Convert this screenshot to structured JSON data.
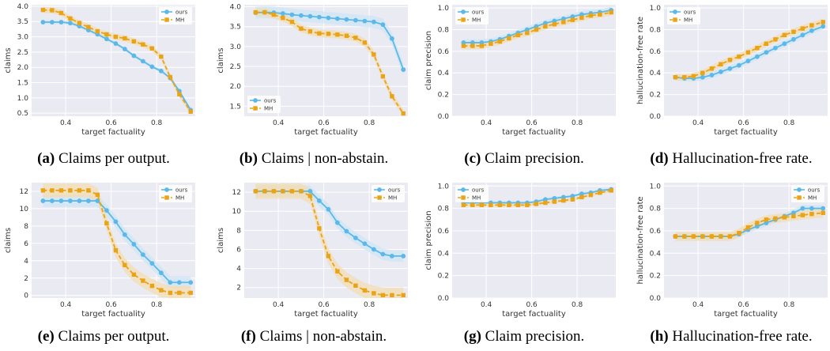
{
  "style": {
    "plot_bg": "#eaeaf2",
    "grid": "#ffffff",
    "ours_color": "#5bb8e8",
    "mh_color": "#e8a317",
    "ours_band": "#cde6f4",
    "mh_band": "#f3dcb0"
  },
  "chart_data": [
    {
      "type": "line",
      "panel": "a",
      "caption_tag": "(a)",
      "caption_text": "Claims per output.",
      "xlabel": "target factuality",
      "ylabel": "claims",
      "xlim": [
        0.25,
        0.97
      ],
      "ylim": [
        0.4,
        4.05
      ],
      "xticks": [
        0.4,
        0.6,
        0.8
      ],
      "yticks": [
        0.5,
        1.0,
        1.5,
        2.0,
        2.5,
        3.0,
        3.5,
        4.0
      ],
      "ytick_labels": [
        "0.5",
        "1.0",
        "1.5",
        "2.0",
        "2.5",
        "3.0",
        "3.5",
        "4.0"
      ],
      "xtick_labels": [
        "0.4",
        "0.6",
        "0.8"
      ],
      "grid": true,
      "legend": "top-right",
      "x": [
        0.3,
        0.34,
        0.38,
        0.42,
        0.46,
        0.5,
        0.54,
        0.58,
        0.62,
        0.66,
        0.7,
        0.74,
        0.78,
        0.82,
        0.86,
        0.9,
        0.95
      ],
      "series": [
        {
          "name": "ours",
          "values": [
            3.48,
            3.48,
            3.48,
            3.45,
            3.35,
            3.22,
            3.08,
            2.93,
            2.78,
            2.6,
            2.38,
            2.2,
            2.02,
            1.88,
            1.65,
            1.22,
            0.6
          ],
          "band": 0.06
        },
        {
          "name": "MH",
          "values": [
            3.88,
            3.87,
            3.78,
            3.6,
            3.45,
            3.32,
            3.18,
            3.08,
            3.0,
            2.95,
            2.85,
            2.75,
            2.62,
            2.35,
            1.68,
            1.12,
            0.55
          ],
          "band": 0.1
        }
      ]
    },
    {
      "type": "line",
      "panel": "b",
      "caption_tag": "(b)",
      "caption_text": "Claims | non-abstain.",
      "xlabel": "target factuality",
      "ylabel": "claims",
      "xlim": [
        0.25,
        0.97
      ],
      "ylim": [
        1.25,
        4.05
      ],
      "xticks": [
        0.4,
        0.6,
        0.8
      ],
      "yticks": [
        1.5,
        2.0,
        2.5,
        3.0,
        3.5,
        4.0
      ],
      "ytick_labels": [
        "1.5",
        "2.0",
        "2.5",
        "3.0",
        "3.5",
        "4.0"
      ],
      "xtick_labels": [
        "0.4",
        "0.6",
        "0.8"
      ],
      "grid": true,
      "legend": "bottom-left",
      "x": [
        0.3,
        0.34,
        0.38,
        0.42,
        0.46,
        0.5,
        0.54,
        0.58,
        0.62,
        0.66,
        0.7,
        0.74,
        0.78,
        0.82,
        0.86,
        0.9,
        0.95
      ],
      "series": [
        {
          "name": "ours",
          "values": [
            3.85,
            3.86,
            3.85,
            3.83,
            3.8,
            3.78,
            3.76,
            3.74,
            3.72,
            3.7,
            3.68,
            3.66,
            3.64,
            3.62,
            3.55,
            3.2,
            2.42
          ],
          "band": 0.15
        },
        {
          "name": "MH",
          "values": [
            3.86,
            3.86,
            3.8,
            3.72,
            3.62,
            3.45,
            3.38,
            3.33,
            3.32,
            3.3,
            3.27,
            3.22,
            3.1,
            2.8,
            2.25,
            1.75,
            1.32
          ],
          "band": 0.1
        }
      ]
    },
    {
      "type": "line",
      "panel": "c",
      "caption_tag": "(c)",
      "caption_text": "Claim precision.",
      "xlabel": "target factuality",
      "ylabel": "claim precision",
      "xlim": [
        0.25,
        0.97
      ],
      "ylim": [
        0.0,
        1.03
      ],
      "xticks": [
        0.4,
        0.6,
        0.8
      ],
      "yticks": [
        0.0,
        0.2,
        0.4,
        0.6,
        0.8,
        1.0
      ],
      "ytick_labels": [
        "0.0",
        "0.2",
        "0.4",
        "0.6",
        "0.8",
        "1.0"
      ],
      "xtick_labels": [
        "0.4",
        "0.6",
        "0.8"
      ],
      "grid": true,
      "legend": "top-left",
      "x": [
        0.3,
        0.34,
        0.38,
        0.42,
        0.46,
        0.5,
        0.54,
        0.58,
        0.62,
        0.66,
        0.7,
        0.74,
        0.78,
        0.82,
        0.86,
        0.9,
        0.95
      ],
      "series": [
        {
          "name": "ours",
          "values": [
            0.68,
            0.68,
            0.68,
            0.69,
            0.71,
            0.74,
            0.77,
            0.8,
            0.83,
            0.86,
            0.88,
            0.9,
            0.92,
            0.94,
            0.95,
            0.96,
            0.98
          ],
          "band": 0.03
        },
        {
          "name": "MH",
          "values": [
            0.65,
            0.65,
            0.65,
            0.67,
            0.69,
            0.72,
            0.75,
            0.77,
            0.8,
            0.83,
            0.85,
            0.87,
            0.89,
            0.91,
            0.93,
            0.94,
            0.96
          ],
          "band": 0.03
        }
      ]
    },
    {
      "type": "line",
      "panel": "d",
      "caption_tag": "(d)",
      "caption_text": "Hallucination-free rate.",
      "xlabel": "target factuality",
      "ylabel": "hallucination-free rate",
      "xlim": [
        0.25,
        0.97
      ],
      "ylim": [
        0.0,
        1.03
      ],
      "xticks": [
        0.4,
        0.6,
        0.8
      ],
      "yticks": [
        0.0,
        0.2,
        0.4,
        0.6,
        0.8,
        1.0
      ],
      "ytick_labels": [
        "0.0",
        "0.2",
        "0.4",
        "0.6",
        "0.8",
        "1.0"
      ],
      "xtick_labels": [
        "0.4",
        "0.6",
        "0.8"
      ],
      "grid": true,
      "legend": "top-left",
      "x": [
        0.3,
        0.34,
        0.38,
        0.42,
        0.46,
        0.5,
        0.54,
        0.58,
        0.62,
        0.66,
        0.7,
        0.74,
        0.78,
        0.82,
        0.86,
        0.9,
        0.95
      ],
      "series": [
        {
          "name": "ours",
          "values": [
            0.36,
            0.35,
            0.35,
            0.36,
            0.38,
            0.41,
            0.44,
            0.47,
            0.51,
            0.55,
            0.59,
            0.63,
            0.67,
            0.71,
            0.75,
            0.79,
            0.83
          ],
          "band": 0.03
        },
        {
          "name": "MH",
          "values": [
            0.36,
            0.36,
            0.37,
            0.4,
            0.44,
            0.48,
            0.52,
            0.55,
            0.59,
            0.63,
            0.67,
            0.71,
            0.75,
            0.78,
            0.81,
            0.84,
            0.87
          ],
          "band": 0.03
        }
      ]
    },
    {
      "type": "line",
      "panel": "e",
      "caption_tag": "(e)",
      "caption_text": "Claims per output.",
      "xlabel": "target factuality",
      "ylabel": "claims",
      "xlim": [
        0.25,
        0.97
      ],
      "ylim": [
        -0.3,
        13.0
      ],
      "xticks": [
        0.4,
        0.6,
        0.8
      ],
      "yticks": [
        0,
        2,
        4,
        6,
        8,
        10,
        12
      ],
      "ytick_labels": [
        "0",
        "2",
        "4",
        "6",
        "8",
        "10",
        "12"
      ],
      "xtick_labels": [
        "0.4",
        "0.6",
        "0.8"
      ],
      "grid": true,
      "legend": "top-right",
      "x": [
        0.3,
        0.34,
        0.38,
        0.42,
        0.46,
        0.5,
        0.54,
        0.58,
        0.62,
        0.66,
        0.7,
        0.74,
        0.78,
        0.82,
        0.86,
        0.9,
        0.95
      ],
      "series": [
        {
          "name": "ours",
          "values": [
            10.9,
            10.9,
            10.9,
            10.9,
            10.9,
            10.9,
            10.9,
            9.8,
            8.5,
            7.0,
            5.9,
            4.7,
            3.7,
            2.6,
            1.5,
            1.5,
            1.5
          ],
          "band": 0.7
        },
        {
          "name": "MH",
          "values": [
            12.1,
            12.1,
            12.1,
            12.1,
            12.1,
            12.1,
            11.6,
            8.3,
            5.2,
            3.5,
            2.4,
            1.7,
            1.1,
            0.6,
            0.3,
            0.3,
            0.3
          ],
          "band": 0.8
        }
      ]
    },
    {
      "type": "line",
      "panel": "f",
      "caption_tag": "(f)",
      "caption_text": "Claims | non-abstain.",
      "xlabel": "target factuality",
      "ylabel": "claims",
      "xlim": [
        0.25,
        0.97
      ],
      "ylim": [
        0.9,
        13.0
      ],
      "xticks": [
        0.4,
        0.6,
        0.8
      ],
      "yticks": [
        2,
        4,
        6,
        8,
        10,
        12
      ],
      "ytick_labels": [
        "2",
        "4",
        "6",
        "8",
        "10",
        "12"
      ],
      "xtick_labels": [
        "0.4",
        "0.6",
        "0.8"
      ],
      "grid": true,
      "legend": "top-right",
      "x": [
        0.3,
        0.34,
        0.38,
        0.42,
        0.46,
        0.5,
        0.54,
        0.58,
        0.62,
        0.66,
        0.7,
        0.74,
        0.78,
        0.82,
        0.86,
        0.9,
        0.95
      ],
      "series": [
        {
          "name": "ours",
          "values": [
            12.1,
            12.1,
            12.1,
            12.1,
            12.1,
            12.1,
            12.1,
            11.1,
            10.2,
            8.8,
            7.9,
            7.2,
            6.6,
            6.0,
            5.5,
            5.3,
            5.3
          ],
          "band": 0.6
        },
        {
          "name": "MH",
          "values": [
            12.1,
            12.1,
            12.1,
            12.1,
            12.1,
            12.1,
            11.6,
            8.2,
            5.3,
            3.7,
            2.8,
            2.2,
            1.7,
            1.4,
            1.2,
            1.2,
            1.2
          ],
          "band": 0.8
        }
      ]
    },
    {
      "type": "line",
      "panel": "g",
      "caption_tag": "(g)",
      "caption_text": "Claim precision.",
      "xlabel": "target factuality",
      "ylabel": "claim precision",
      "xlim": [
        0.25,
        0.97
      ],
      "ylim": [
        0.0,
        1.03
      ],
      "xticks": [
        0.4,
        0.6,
        0.8
      ],
      "yticks": [
        0.0,
        0.2,
        0.4,
        0.6,
        0.8,
        1.0
      ],
      "ytick_labels": [
        "0.0",
        "0.2",
        "0.4",
        "0.6",
        "0.8",
        "1.0"
      ],
      "xtick_labels": [
        "0.4",
        "0.6",
        "0.8"
      ],
      "grid": true,
      "legend": "top-left",
      "x": [
        0.3,
        0.34,
        0.38,
        0.42,
        0.46,
        0.5,
        0.54,
        0.58,
        0.62,
        0.66,
        0.7,
        0.74,
        0.78,
        0.82,
        0.86,
        0.9,
        0.95
      ],
      "series": [
        {
          "name": "ours",
          "values": [
            0.85,
            0.85,
            0.85,
            0.85,
            0.85,
            0.85,
            0.85,
            0.85,
            0.86,
            0.88,
            0.89,
            0.9,
            0.91,
            0.93,
            0.94,
            0.96,
            0.97
          ],
          "band": 0.015
        },
        {
          "name": "MH",
          "values": [
            0.83,
            0.83,
            0.83,
            0.83,
            0.83,
            0.83,
            0.83,
            0.83,
            0.84,
            0.85,
            0.86,
            0.87,
            0.88,
            0.9,
            0.92,
            0.94,
            0.96
          ],
          "band": 0.015
        }
      ]
    },
    {
      "type": "line",
      "panel": "h",
      "caption_tag": "(h)",
      "caption_text": "Hallucination-free rate.",
      "xlabel": "target factuality",
      "ylabel": "hallucination-free rate",
      "xlim": [
        0.25,
        0.97
      ],
      "ylim": [
        0.0,
        1.03
      ],
      "xticks": [
        0.4,
        0.6,
        0.8
      ],
      "yticks": [
        0.0,
        0.2,
        0.4,
        0.6,
        0.8,
        1.0
      ],
      "ytick_labels": [
        "0.0",
        "0.2",
        "0.4",
        "0.6",
        "0.8",
        "1.0"
      ],
      "xtick_labels": [
        "0.4",
        "0.6",
        "0.8"
      ],
      "grid": true,
      "legend": "top-right",
      "x": [
        0.3,
        0.34,
        0.38,
        0.42,
        0.46,
        0.5,
        0.54,
        0.58,
        0.62,
        0.66,
        0.7,
        0.74,
        0.78,
        0.82,
        0.86,
        0.9,
        0.95
      ],
      "series": [
        {
          "name": "ours",
          "values": [
            0.55,
            0.55,
            0.55,
            0.55,
            0.55,
            0.55,
            0.55,
            0.57,
            0.61,
            0.64,
            0.67,
            0.7,
            0.73,
            0.76,
            0.8,
            0.8,
            0.8
          ],
          "band": 0.03
        },
        {
          "name": "MH",
          "values": [
            0.55,
            0.55,
            0.55,
            0.55,
            0.55,
            0.55,
            0.55,
            0.58,
            0.63,
            0.67,
            0.7,
            0.71,
            0.72,
            0.73,
            0.74,
            0.75,
            0.76
          ],
          "band": 0.04
        }
      ]
    }
  ]
}
